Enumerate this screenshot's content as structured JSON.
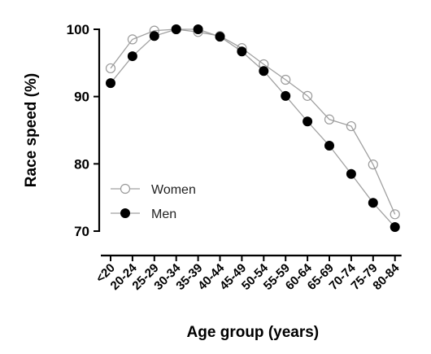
{
  "chart_data": {
    "type": "line",
    "xlabel": "Age group (years)",
    "ylabel": "Race speed (%)",
    "ylim": [
      70,
      100
    ],
    "yticks": [
      70,
      80,
      90,
      100
    ],
    "categories": [
      "<20",
      "20-24",
      "25-29",
      "30-34",
      "35-39",
      "40-44",
      "45-49",
      "50-54",
      "55-59",
      "60-64",
      "65-69",
      "70-74",
      "75-79",
      "80-84"
    ],
    "series": [
      {
        "name": "Women",
        "marker": "open-circle",
        "color": "#9a9a9a",
        "values": [
          94.2,
          98.5,
          99.8,
          100.0,
          99.6,
          99.0,
          97.2,
          94.8,
          92.5,
          90.1,
          86.6,
          85.6,
          79.9,
          72.5
        ]
      },
      {
        "name": "Men",
        "marker": "filled-circle",
        "color": "#000000",
        "values": [
          92.0,
          96.0,
          99.0,
          100.0,
          100.0,
          98.9,
          96.7,
          93.8,
          90.1,
          86.3,
          82.7,
          78.5,
          74.2,
          70.6
        ]
      }
    ],
    "legend": "left-middle",
    "grid": false
  }
}
